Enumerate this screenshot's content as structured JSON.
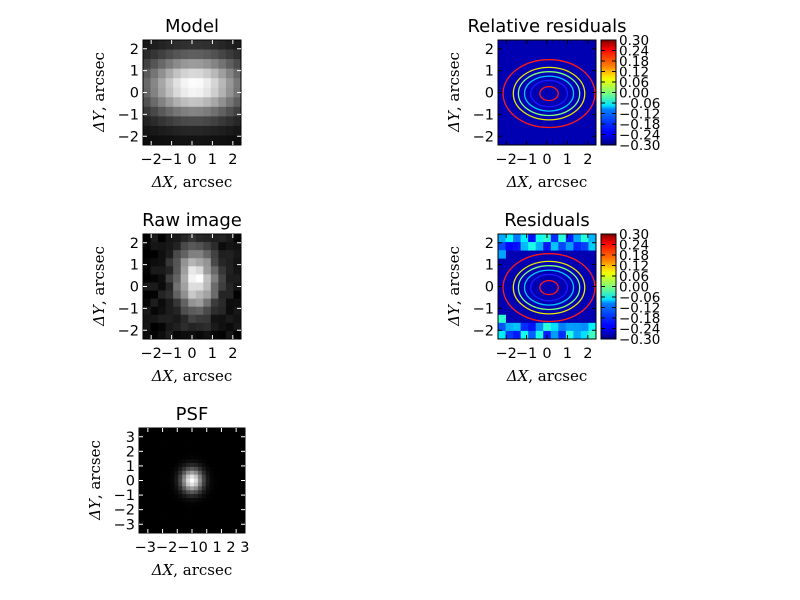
{
  "chart_data": [
    {
      "id": "model",
      "type": "heatmap",
      "title": "Model",
      "xlabel_sym": "ΔX",
      "ylabel_sym": "ΔY",
      "label_unit": ", arcsec",
      "cmap": "gray",
      "xticks": [
        "−2",
        "−1",
        "0",
        "1",
        "2"
      ],
      "yticks": [
        "−2",
        "−1",
        "0",
        "1",
        "2"
      ],
      "xlim": [
        -2.4,
        2.4
      ],
      "ylim": [
        -2.4,
        2.4
      ],
      "grid": [
        13,
        11
      ],
      "pattern": "smooth",
      "center": [
        0.1,
        0.3
      ],
      "sigma": [
        1.7,
        1.0
      ]
    },
    {
      "id": "relres",
      "type": "heatmap",
      "title": "Relative residuals",
      "xlabel_sym": "ΔX",
      "ylabel_sym": "ΔY",
      "label_unit": ", arcsec",
      "cmap": "jet",
      "xticks": [
        "−2",
        "−1",
        "0",
        "1",
        "2"
      ],
      "yticks": [
        "−2",
        "−1",
        "0",
        "1",
        "2"
      ],
      "xlim": [
        -2.4,
        2.4
      ],
      "ylim": [
        -2.4,
        2.4
      ],
      "background_value": -0.27,
      "contours": [
        {
          "color": "#ff1a1a",
          "rx": 0.45,
          "ry": 0.32
        },
        {
          "color": "#1a1aff",
          "rx": 0.9,
          "ry": 0.6
        },
        {
          "color": "#00c8ff",
          "rx": 1.2,
          "ry": 0.8
        },
        {
          "color": "#7dff7a",
          "rx": 1.5,
          "ry": 1.0
        },
        {
          "color": "#e8e800",
          "rx": 1.75,
          "ry": 1.2
        },
        {
          "color": "#ff1a1a",
          "rx": 2.25,
          "ry": 1.55
        }
      ],
      "colorbar": {
        "ticks": [
          "0.30",
          "0.24",
          "0.18",
          "0.12",
          "0.06",
          "0.00",
          "−0.06",
          "−0.12",
          "−0.18",
          "−0.24",
          "−0.30"
        ],
        "range": [
          -0.3,
          0.3
        ]
      }
    },
    {
      "id": "raw",
      "type": "heatmap",
      "title": "Raw image",
      "xlabel_sym": "ΔX",
      "ylabel_sym": "ΔY",
      "label_unit": ", arcsec",
      "cmap": "gray",
      "xticks": [
        "−2",
        "−1",
        "0",
        "1",
        "2"
      ],
      "yticks": [
        "−2",
        "−1",
        "0",
        "1",
        "2"
      ],
      "xlim": [
        -2.4,
        2.4
      ],
      "ylim": [
        -2.4,
        2.4
      ],
      "grid": [
        13,
        13
      ],
      "pattern": "noisy",
      "center": [
        0.2,
        0.3
      ],
      "sigma": [
        0.7,
        1.0
      ]
    },
    {
      "id": "res",
      "type": "heatmap",
      "title": "Residuals",
      "xlabel_sym": "ΔX",
      "ylabel_sym": "ΔY",
      "label_unit": ", arcsec",
      "cmap": "jet",
      "xticks": [
        "−2",
        "−1",
        "0",
        "1",
        "2"
      ],
      "yticks": [
        "−2",
        "−1",
        "0",
        "1",
        "2"
      ],
      "xlim": [
        -2.4,
        2.4
      ],
      "ylim": [
        -2.4,
        2.4
      ],
      "background_value": -0.27,
      "edge_noise": true,
      "contours": [
        {
          "color": "#ff1a1a",
          "rx": 0.45,
          "ry": 0.32
        },
        {
          "color": "#1a1aff",
          "rx": 0.9,
          "ry": 0.6
        },
        {
          "color": "#00c8ff",
          "rx": 1.2,
          "ry": 0.8
        },
        {
          "color": "#7dff7a",
          "rx": 1.5,
          "ry": 1.0
        },
        {
          "color": "#e8e800",
          "rx": 1.75,
          "ry": 1.2
        },
        {
          "color": "#ff1a1a",
          "rx": 2.25,
          "ry": 1.55
        }
      ],
      "colorbar": {
        "ticks": [
          "0.30",
          "0.24",
          "0.18",
          "0.12",
          "0.06",
          "0.00",
          "−0.06",
          "−0.12",
          "−0.18",
          "−0.24",
          "−0.30"
        ],
        "range": [
          -0.3,
          0.3
        ]
      }
    },
    {
      "id": "psf",
      "type": "heatmap",
      "title": "PSF",
      "xlabel_sym": "ΔX",
      "ylabel_sym": "ΔY",
      "label_unit": ", arcsec",
      "cmap": "gray",
      "xticks": [
        "−3",
        "−2",
        "−1",
        "0",
        "1",
        "2",
        "3"
      ],
      "xtick_text": "−3−2−10 1 2 3",
      "yticks": [
        "−3",
        "−2",
        "−1",
        "0",
        "1",
        "2",
        "3"
      ],
      "xlim": [
        -3.6,
        3.6
      ],
      "ylim": [
        -3.6,
        3.6
      ],
      "grid": [
        27,
        27
      ],
      "pattern": "smooth",
      "center": [
        0.0,
        0.0
      ],
      "sigma": [
        0.5,
        0.55
      ]
    }
  ]
}
